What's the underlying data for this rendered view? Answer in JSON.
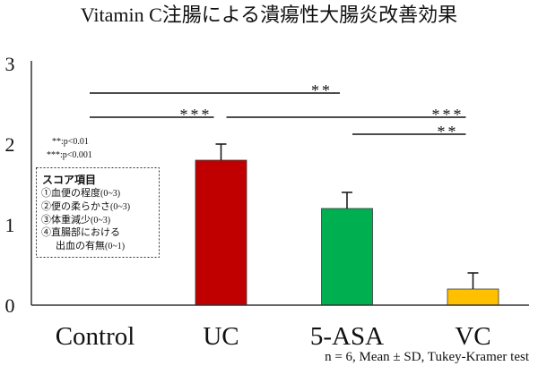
{
  "chart_data": {
    "type": "bar",
    "title": "Vitamin C注腸による潰瘍性大腸炎改善効果",
    "categories": [
      "Control",
      "UC",
      "5-ASA",
      "VC"
    ],
    "values": [
      0,
      1.8,
      1.2,
      0.2
    ],
    "error": [
      0,
      0.2,
      0.2,
      0.2
    ],
    "colors": [
      null,
      "#c00000",
      "#00b050",
      "#ffc000"
    ],
    "xlabel": "",
    "ylabel": "",
    "ylim": [
      0,
      3
    ],
    "yticks": [
      0,
      1,
      2,
      3
    ],
    "grid": false,
    "significance": [
      {
        "from": "Control",
        "to": "5-ASA",
        "label": "**"
      },
      {
        "from": "Control",
        "to": "UC",
        "label": "***"
      },
      {
        "from": "UC",
        "to": "VC",
        "label": "***"
      },
      {
        "from": "5-ASA",
        "to": "VC",
        "label": "**"
      }
    ],
    "p_value_notes": [
      "**:p<0.01",
      "***:p<0.001"
    ],
    "score_box": {
      "title": "スコア項目",
      "lines": [
        {
          "text": "①血便の程度",
          "range": "(0~3)"
        },
        {
          "text": "②便の柔らかさ",
          "range": "(0~3)"
        },
        {
          "text": "③体重減少",
          "range": "(0~3)"
        },
        {
          "text": "④直腸部における"
        },
        {
          "text": "出血の有無",
          "range": "(0~1)"
        }
      ]
    },
    "footnote": "n = 6, Mean ± SD, Tukey-Kramer test"
  }
}
